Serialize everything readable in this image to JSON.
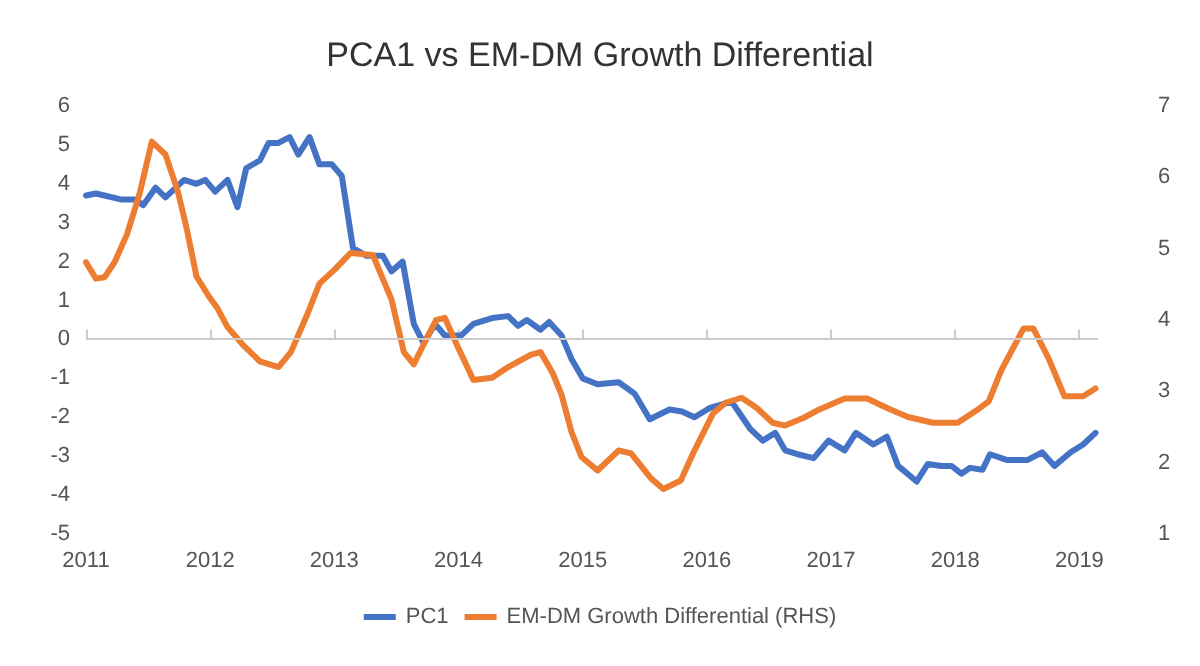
{
  "chart_data": {
    "type": "line",
    "title": "PCA1 vs EM-DM Growth Differential",
    "xlim": [
      2011,
      2019.15
    ],
    "xticks": [
      2011,
      2012,
      2013,
      2014,
      2015,
      2016,
      2017,
      2018,
      2019
    ],
    "ylim": [
      -5,
      6
    ],
    "yticks": [
      -5,
      -4,
      -3,
      -2,
      -1,
      0,
      1,
      2,
      3,
      4,
      5,
      6
    ],
    "y2lim": [
      1,
      7
    ],
    "y2ticks": [
      1,
      2,
      3,
      4,
      5,
      6,
      7
    ],
    "grid": false,
    "ref_lines": [
      {
        "axis": "y",
        "value": 0,
        "color": "#cccccc"
      }
    ],
    "legend": "bottom",
    "marker": "none",
    "line_style": "solid",
    "series": [
      {
        "name": "PC1",
        "color": "#4472c4",
        "x": [
          2011,
          2011.08,
          2011.28,
          2011.4,
          2011.46,
          2011.56,
          2011.64,
          2011.79,
          2011.89,
          2011.96,
          2012.04,
          2012.14,
          2012.22,
          2012.29,
          2012.4,
          2012.47,
          2012.55,
          2012.64,
          2012.71,
          2012.8,
          2012.88,
          2012.98,
          2013.06,
          2013.15,
          2013.26,
          2013.39,
          2013.46,
          2013.55,
          2013.64,
          2013.72,
          2013.81,
          2013.89,
          2014.02,
          2014.12,
          2014.27,
          2014.4,
          2014.48,
          2014.55,
          2014.66,
          2014.73,
          2014.83,
          2014.91,
          2015,
          2015.12,
          2015.29,
          2015.42,
          2015.54,
          2015.7,
          2015.8,
          2015.9,
          2016.03,
          2016.2,
          2016.35,
          2016.45,
          2016.55,
          2016.63,
          2016.73,
          2016.86,
          2016.98,
          2017.11,
          2017.2,
          2017.34,
          2017.45,
          2017.54,
          2017.69,
          2017.78,
          2017.89,
          2017.97,
          2018.05,
          2018.12,
          2018.22,
          2018.28,
          2018.42,
          2018.58,
          2018.7,
          2018.8,
          2018.93,
          2019.03,
          2019.13
        ],
        "values": [
          3.7,
          3.75,
          3.6,
          3.6,
          3.45,
          3.9,
          3.65,
          4.1,
          4,
          4.1,
          3.8,
          4.1,
          3.4,
          4.4,
          4.6,
          5.05,
          5.05,
          5.2,
          4.75,
          5.2,
          4.5,
          4.5,
          4.2,
          2.35,
          2.15,
          2.15,
          1.75,
          2,
          0.4,
          -0.1,
          0.4,
          0.1,
          0.1,
          0.4,
          0.55,
          0.6,
          0.35,
          0.5,
          0.25,
          0.45,
          0.1,
          -0.5,
          -1,
          -1.15,
          -1.1,
          -1.4,
          -2.05,
          -1.8,
          -1.85,
          -2,
          -1.75,
          -1.6,
          -2.3,
          -2.6,
          -2.4,
          -2.85,
          -2.95,
          -3.05,
          -2.6,
          -2.85,
          -2.4,
          -2.7,
          -2.5,
          -3.25,
          -3.65,
          -3.2,
          -3.25,
          -3.25,
          -3.45,
          -3.3,
          -3.35,
          -2.95,
          -3.1,
          -3.1,
          -2.9,
          -3.25,
          -2.9,
          -2.7,
          -2.4
        ]
      },
      {
        "name": "EM-DM Growth Differential (RHS)",
        "color": "#ed7d31",
        "axis": "y2",
        "x": [
          2011,
          2011.08,
          2011.15,
          2011.23,
          2011.33,
          2011.43,
          2011.53,
          2011.64,
          2011.74,
          2011.81,
          2011.89,
          2011.99,
          2012.06,
          2012.14,
          2012.27,
          2012.4,
          2012.55,
          2012.65,
          2012.78,
          2012.88,
          2013.01,
          2013.13,
          2013.31,
          2013.46,
          2013.56,
          2013.64,
          2013.74,
          2013.82,
          2013.89,
          2013.99,
          2014.12,
          2014.27,
          2014.4,
          2014.58,
          2014.66,
          2014.76,
          2014.83,
          2014.91,
          2014.99,
          2015.12,
          2015.29,
          2015.39,
          2015.55,
          2015.65,
          2015.79,
          2015.9,
          2016.05,
          2016.15,
          2016.28,
          2016.4,
          2016.53,
          2016.63,
          2016.78,
          2016.91,
          2017.11,
          2017.29,
          2017.46,
          2017.62,
          2017.82,
          2018.02,
          2018.17,
          2018.27,
          2018.37,
          2018.55,
          2018.63,
          2018.75,
          2018.88,
          2019.03,
          2019.13
        ],
        "values": [
          4.81,
          4.58,
          4.6,
          4.81,
          5.2,
          5.76,
          6.5,
          6.32,
          5.8,
          5.29,
          4.61,
          4.33,
          4.16,
          3.9,
          3.64,
          3.42,
          3.34,
          3.55,
          4.07,
          4.51,
          4.72,
          4.94,
          4.91,
          4.29,
          3.55,
          3.38,
          3.73,
          4,
          4.03,
          3.64,
          3.16,
          3.19,
          3.34,
          3.51,
          3.55,
          3.25,
          2.95,
          2.43,
          2.08,
          1.89,
          2.17,
          2.13,
          1.78,
          1.63,
          1.75,
          2.17,
          2.69,
          2.84,
          2.91,
          2.77,
          2.56,
          2.52,
          2.63,
          2.75,
          2.9,
          2.9,
          2.76,
          2.64,
          2.56,
          2.56,
          2.73,
          2.86,
          3.29,
          3.88,
          3.88,
          3.47,
          2.93,
          2.93,
          3.04
        ]
      }
    ]
  }
}
